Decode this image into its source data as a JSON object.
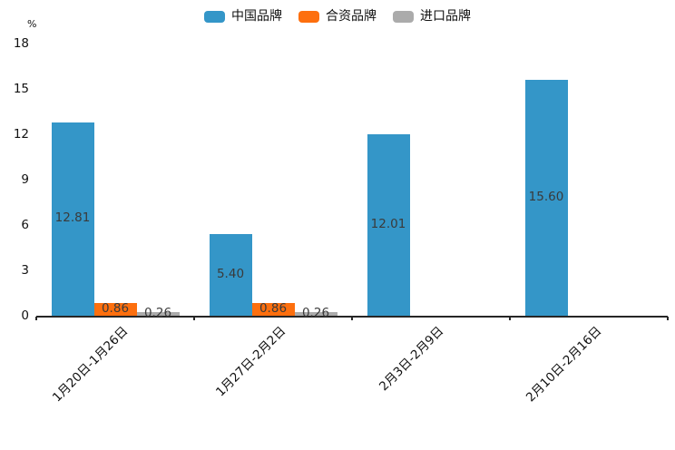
{
  "chart_data": {
    "type": "bar",
    "title": "",
    "ylabel": "%",
    "categories": [
      "1月20日-1月26日",
      "1月27日-2月2日",
      "2月3日-2月9日",
      "2月10日-2月16日"
    ],
    "series": [
      {
        "name": "中国品牌",
        "color": "#3496c8",
        "values": [
          12.81,
          5.4,
          12.01,
          15.6
        ]
      },
      {
        "name": "合资品牌",
        "color": "#fd6f0e",
        "values": [
          0.86,
          0.86,
          null,
          null
        ]
      },
      {
        "name": "进口品牌",
        "color": "#ababab",
        "values": [
          0.26,
          0.26,
          null,
          null
        ]
      }
    ],
    "yticks": [
      0,
      3,
      6,
      9,
      12,
      15,
      18
    ],
    "ylim": [
      0,
      18
    ],
    "grid": false,
    "legend_position": "top",
    "value_labels": "centered, two decimals",
    "axis_color": "#262626",
    "value_label_color": "#3a3a3a"
  },
  "legend": {
    "items": [
      {
        "label": "中国品牌",
        "color": "#3496c8"
      },
      {
        "label": "合资品牌",
        "color": "#fd6f0e"
      },
      {
        "label": "进口品牌",
        "color": "#ababab"
      }
    ]
  }
}
